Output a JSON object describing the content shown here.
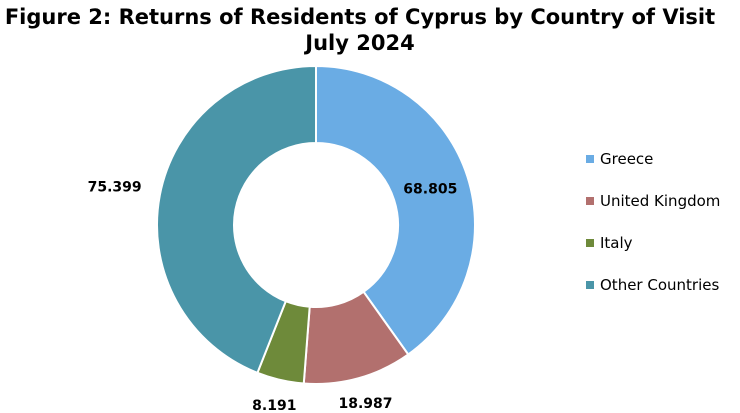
{
  "title": {
    "line1": "Figure 2: Returns of Residents of Cyprus by Country of Visit",
    "line2": "July 2024"
  },
  "chart_data": {
    "type": "pie",
    "donut": true,
    "title": "Figure 2: Returns of Residents of Cyprus by Country of Visit July 2024",
    "categories": [
      "Greece",
      "United Kingdom",
      "Italy",
      "Other Countries"
    ],
    "values": [
      68805,
      18987,
      8191,
      75399
    ],
    "value_labels": [
      "68.805",
      "18.987",
      "8.191",
      "75.399"
    ],
    "colors": [
      "#6AACE4",
      "#B2706E",
      "#6E8A3A",
      "#4A95A8"
    ],
    "legend_position": "right"
  }
}
